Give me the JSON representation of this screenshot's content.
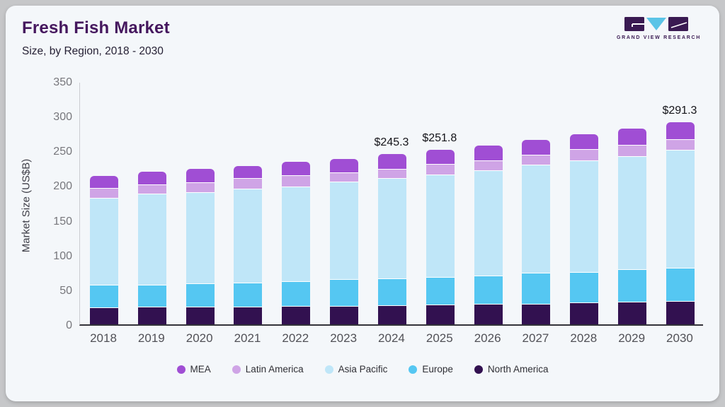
{
  "header": {
    "title": "Fresh Fish Market",
    "subtitle": "Size, by Region, 2018 - 2030"
  },
  "logo": {
    "name": "grand-view-research-logo",
    "text": "GRAND VIEW RESEARCH",
    "mark_color": "#3a1a52",
    "triangle_color": "#5bc4e7"
  },
  "palette": {
    "card_background": "#f4f7fa",
    "outer_background": "#c6c7c9",
    "title_color": "#45175e",
    "axis_line_color": "#33333a"
  },
  "chart_data": {
    "type": "bar",
    "stacked": true,
    "title": "Fresh Fish Market Size, by Region, 2018 - 2030",
    "xlabel": "",
    "ylabel": "Market Size (US$B)",
    "ylim": [
      0,
      350
    ],
    "yticks": [
      0,
      50,
      100,
      150,
      200,
      250,
      300,
      350
    ],
    "grid": false,
    "legend_position": "bottom",
    "categories": [
      "2018",
      "2019",
      "2020",
      "2021",
      "2022",
      "2023",
      "2024",
      "2025",
      "2026",
      "2027",
      "2028",
      "2029",
      "2030"
    ],
    "series": [
      {
        "name": "North America",
        "color": "#321150",
        "values": [
          23.8,
          24.0,
          24.5,
          24.5,
          25.5,
          25.5,
          26.2,
          27.2,
          28.3,
          28.9,
          30.6,
          31.3,
          32.3
        ]
      },
      {
        "name": "Europe",
        "color": "#55c7f2",
        "values": [
          32.3,
          32.1,
          34.0,
          35.0,
          35.7,
          39.1,
          39.1,
          40.1,
          41.4,
          44.3,
          44.2,
          46.9,
          48.3
        ]
      },
      {
        "name": "Asia Pacific",
        "color": "#bfe6f8",
        "values": [
          124.8,
          130.9,
          131.0,
          134.4,
          136.7,
          140.2,
          144.6,
          147.7,
          151.4,
          155.4,
          159.9,
          163.3,
          170.1
        ]
      },
      {
        "name": "Latin America",
        "color": "#cfa4e6",
        "values": [
          14.7,
          13.7,
          14.5,
          15.3,
          15.4,
          12.9,
          12.9,
          14.6,
          14.3,
          14.6,
          17.0,
          16.4,
          15.3
        ]
      },
      {
        "name": "MEA",
        "color": "#a04ed4",
        "values": [
          17.7,
          18.7,
          19.5,
          18.7,
          20.4,
          20.4,
          22.5,
          22.2,
          22.4,
          22.1,
          22.1,
          24.0,
          25.3
        ]
      }
    ],
    "totals": [
      213.3,
      219.4,
      223.5,
      227.9,
      233.7,
      238.1,
      245.3,
      251.8,
      257.8,
      265.3,
      273.8,
      281.9,
      291.3
    ],
    "legend_order": [
      "MEA",
      "Latin America",
      "Asia Pacific",
      "Europe",
      "North America"
    ],
    "annotations": [
      {
        "category": "2024",
        "text": "$245.3"
      },
      {
        "category": "2025",
        "text": "$251.8"
      },
      {
        "category": "2030",
        "text": "$291.3"
      }
    ]
  }
}
